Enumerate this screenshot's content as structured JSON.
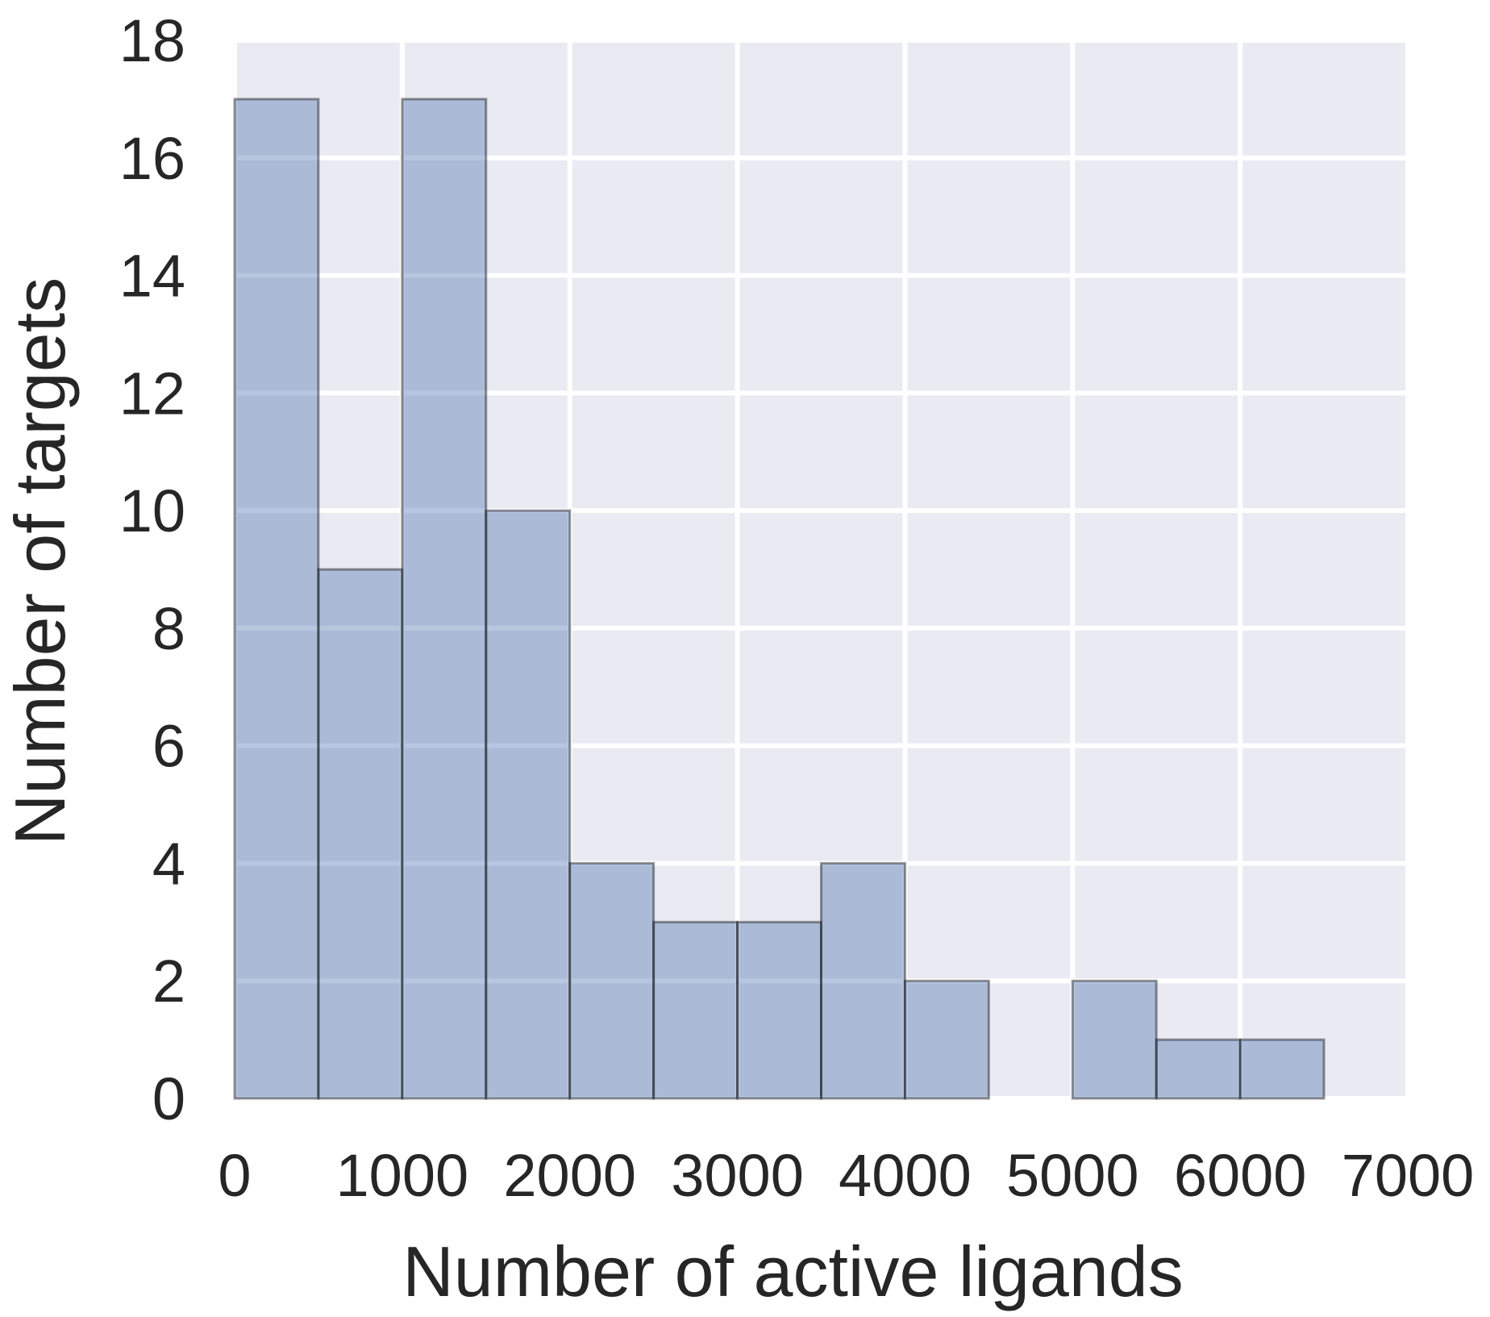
{
  "chart_data": {
    "type": "bar",
    "title": "",
    "xlabel": "Number of active ligands",
    "ylabel": "Number of targets",
    "xlim": [
      0,
      7000
    ],
    "ylim": [
      0,
      18
    ],
    "xticks": [
      0,
      1000,
      2000,
      3000,
      4000,
      5000,
      6000,
      7000
    ],
    "yticks": [
      0,
      2,
      4,
      6,
      8,
      10,
      12,
      14,
      16,
      18
    ],
    "grid": true,
    "bins": [
      {
        "x0": 0,
        "x1": 500,
        "count": 17
      },
      {
        "x0": 500,
        "x1": 1000,
        "count": 9
      },
      {
        "x0": 1000,
        "x1": 1500,
        "count": 17
      },
      {
        "x0": 1500,
        "x1": 2000,
        "count": 10
      },
      {
        "x0": 2000,
        "x1": 2500,
        "count": 4
      },
      {
        "x0": 2500,
        "x1": 3000,
        "count": 3
      },
      {
        "x0": 3000,
        "x1": 3500,
        "count": 3
      },
      {
        "x0": 3500,
        "x1": 4000,
        "count": 4
      },
      {
        "x0": 4000,
        "x1": 4500,
        "count": 2
      },
      {
        "x0": 4500,
        "x1": 5000,
        "count": 0
      },
      {
        "x0": 5000,
        "x1": 5500,
        "count": 2
      },
      {
        "x0": 5500,
        "x1": 6000,
        "count": 1
      },
      {
        "x0": 6000,
        "x1": 6500,
        "count": 1
      }
    ],
    "colors": {
      "background": "#EAEAF2",
      "grid": "#FFFFFF",
      "bar_fill": "#4C72B0",
      "bar_edge": "#000000"
    }
  }
}
